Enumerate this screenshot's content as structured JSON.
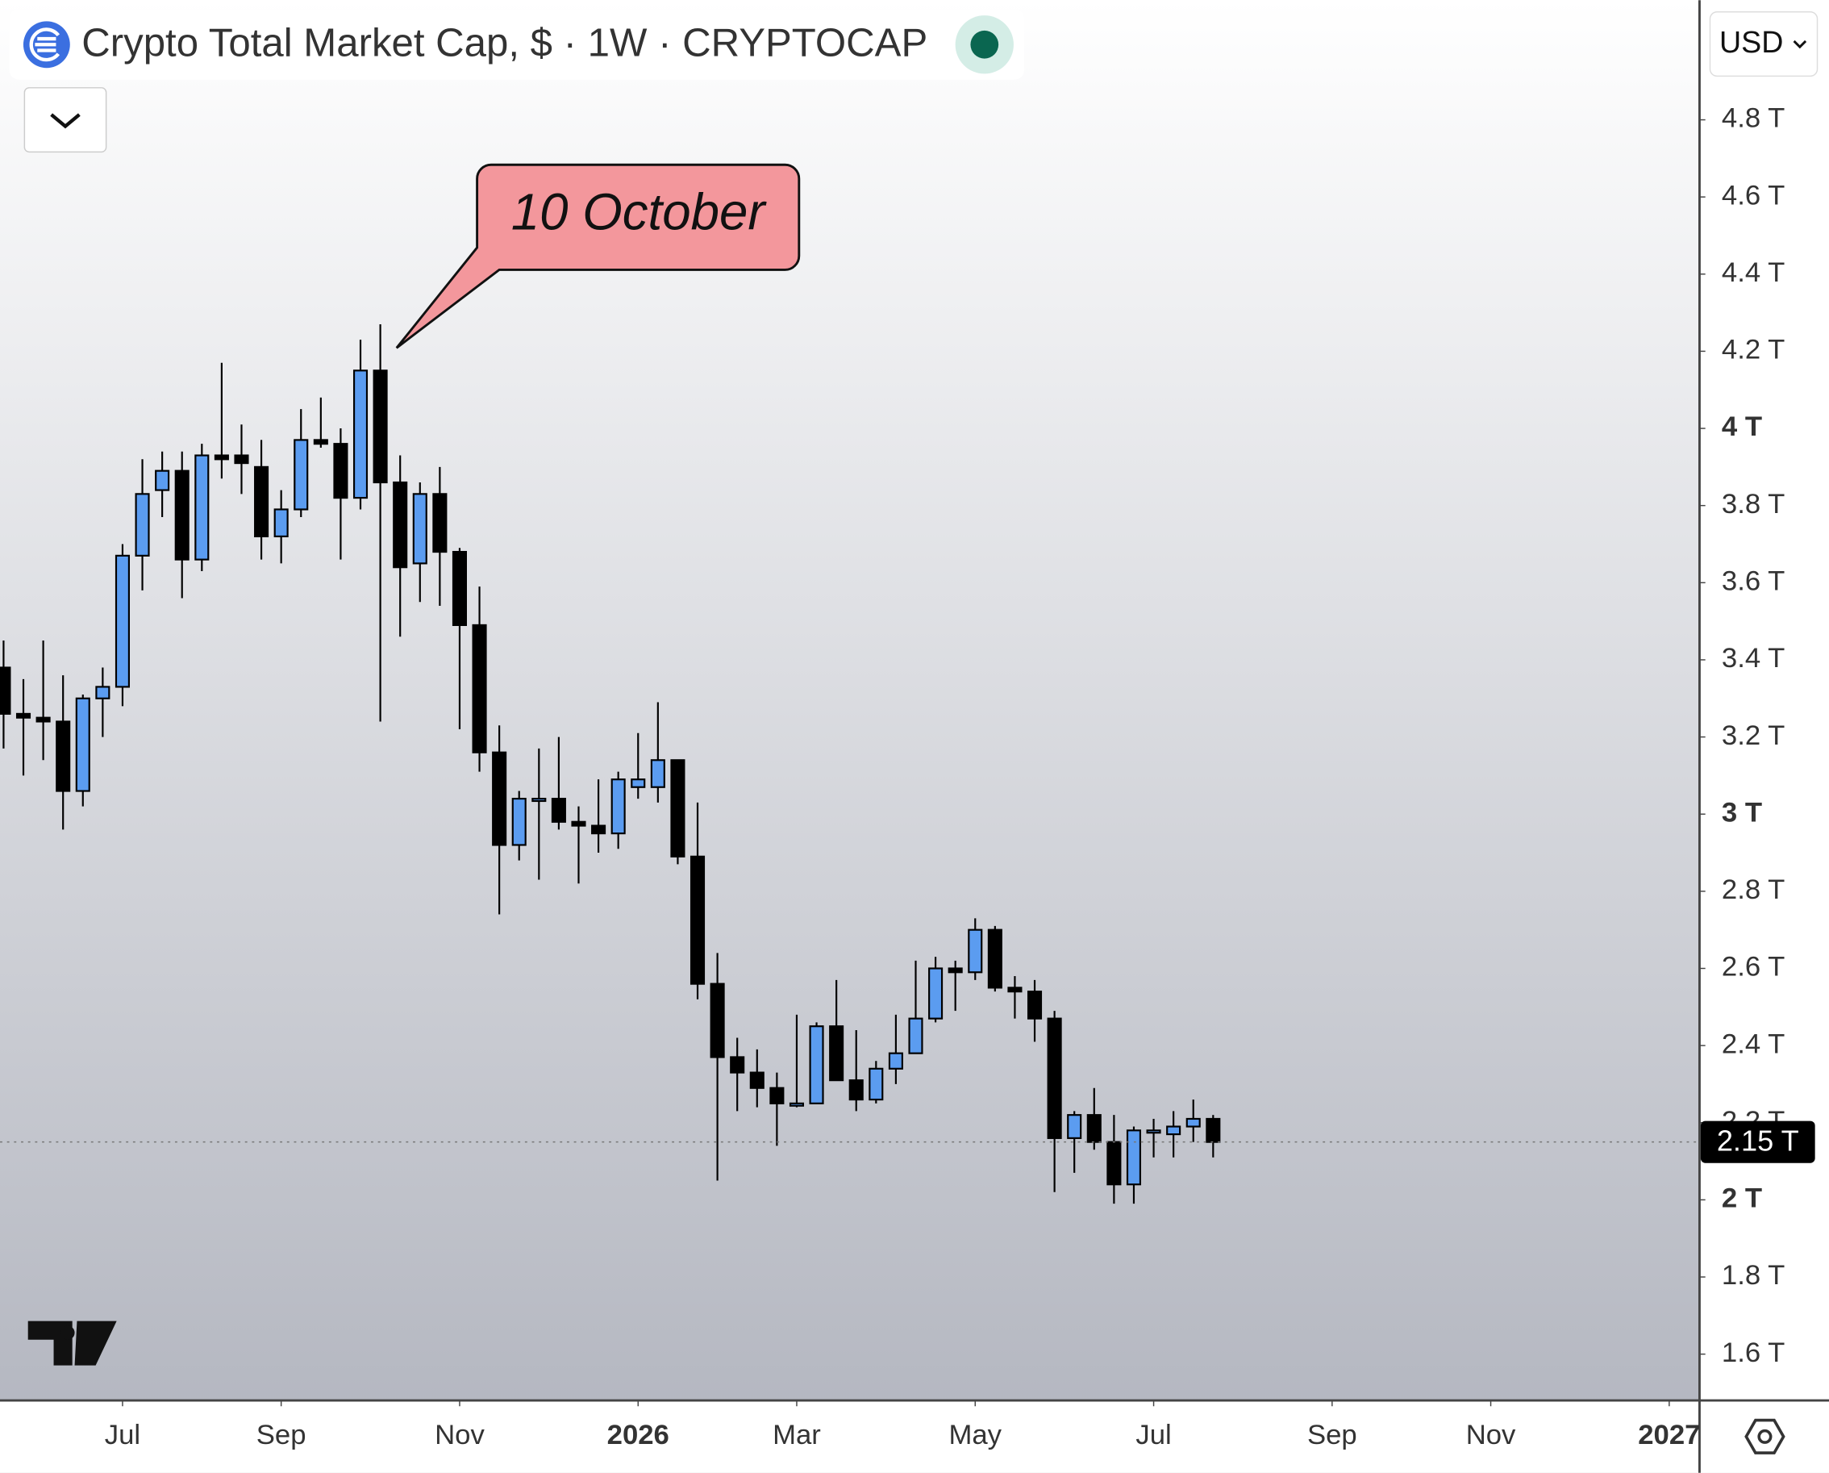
{
  "chart_data": {
    "type": "candlestick",
    "title": "Crypto Total Market Cap, $ · 1W · CRYPTOCAP",
    "currency": "USD",
    "annotation": "10 October",
    "up_color": "#5b9cf0",
    "down_color": "#000000",
    "x": [
      0,
      1,
      2,
      3,
      4,
      5,
      6,
      7,
      8,
      9,
      10,
      11,
      12,
      13,
      14,
      15,
      16,
      17,
      18,
      19,
      20,
      21,
      22,
      23,
      24,
      25,
      26,
      27,
      28,
      29,
      30,
      31,
      32,
      33,
      34,
      35,
      36,
      37,
      38,
      39,
      40,
      41,
      42,
      43,
      44,
      45,
      46,
      47,
      48,
      49,
      50,
      51,
      52,
      53,
      54,
      55,
      56,
      57,
      58,
      59,
      60,
      61
    ],
    "open": [
      3.38,
      3.26,
      3.25,
      3.24,
      3.06,
      3.3,
      3.33,
      3.67,
      3.84,
      3.89,
      3.66,
      3.93,
      3.93,
      3.9,
      3.72,
      3.79,
      3.97,
      3.96,
      3.82,
      4.15,
      3.86,
      3.65,
      3.83,
      3.68,
      3.49,
      3.16,
      2.92,
      3.04,
      3.04,
      2.98,
      2.97,
      2.95,
      3.07,
      3.07,
      3.14,
      2.89,
      2.56,
      2.37,
      2.33,
      2.29,
      2.25,
      2.25,
      2.45,
      2.31,
      2.26,
      2.34,
      2.38,
      2.47,
      2.6,
      2.59,
      2.7,
      2.55,
      2.54,
      2.47,
      2.16,
      2.22,
      2.15,
      2.04,
      2.18,
      2.17,
      2.19,
      2.21
    ],
    "high": [
      3.45,
      3.35,
      3.45,
      3.36,
      3.31,
      3.38,
      3.7,
      3.92,
      3.94,
      3.94,
      3.96,
      4.17,
      4.01,
      3.97,
      3.84,
      4.05,
      4.08,
      4.0,
      4.23,
      4.27,
      3.93,
      3.86,
      3.9,
      3.69,
      3.59,
      3.23,
      3.06,
      3.17,
      3.2,
      3.02,
      3.09,
      3.11,
      3.21,
      3.29,
      3.14,
      3.03,
      2.64,
      2.42,
      2.39,
      2.33,
      2.48,
      2.46,
      2.57,
      2.44,
      2.36,
      2.48,
      2.62,
      2.63,
      2.62,
      2.73,
      2.71,
      2.58,
      2.57,
      2.49,
      2.23,
      2.29,
      2.22,
      2.19,
      2.21,
      2.23,
      2.26,
      2.22
    ],
    "low": [
      3.17,
      3.1,
      3.14,
      2.96,
      3.02,
      3.2,
      3.28,
      3.58,
      3.77,
      3.56,
      3.63,
      3.87,
      3.83,
      3.66,
      3.65,
      3.77,
      3.95,
      3.66,
      3.79,
      3.24,
      3.46,
      3.55,
      3.54,
      3.22,
      3.11,
      2.74,
      2.88,
      2.83,
      2.96,
      2.82,
      2.9,
      2.91,
      3.04,
      3.03,
      2.87,
      2.52,
      2.05,
      2.23,
      2.24,
      2.14,
      2.24,
      2.25,
      2.31,
      2.23,
      2.25,
      2.3,
      2.38,
      2.46,
      2.49,
      2.57,
      2.54,
      2.47,
      2.41,
      2.02,
      2.07,
      2.13,
      1.99,
      1.99,
      2.11,
      2.11,
      2.15,
      2.11
    ],
    "close": [
      3.26,
      3.25,
      3.24,
      3.06,
      3.3,
      3.33,
      3.67,
      3.83,
      3.89,
      3.66,
      3.93,
      3.92,
      3.91,
      3.72,
      3.79,
      3.97,
      3.96,
      3.82,
      4.15,
      3.86,
      3.64,
      3.83,
      3.68,
      3.49,
      3.16,
      2.92,
      3.04,
      3.04,
      2.98,
      2.97,
      2.95,
      3.09,
      3.09,
      3.14,
      2.89,
      2.56,
      2.37,
      2.33,
      2.29,
      2.25,
      2.25,
      2.45,
      2.31,
      2.26,
      2.34,
      2.38,
      2.47,
      2.6,
      2.59,
      2.7,
      2.55,
      2.54,
      2.47,
      2.16,
      2.22,
      2.15,
      2.04,
      2.18,
      2.18,
      2.19,
      2.21,
      2.15
    ],
    "last_price": {
      "value": 2.15,
      "label": "2.15 T"
    },
    "xlim": [
      -0.18,
      85.47
    ],
    "xticks": [
      {
        "value": 6,
        "label": "Jul"
      },
      {
        "value": 14,
        "label": "Sep"
      },
      {
        "value": 23,
        "label": "Nov"
      },
      {
        "value": 32,
        "label": "2026"
      },
      {
        "value": 40,
        "label": "Mar"
      },
      {
        "value": 49,
        "label": "May"
      },
      {
        "value": 58,
        "label": "Jul"
      },
      {
        "value": 67,
        "label": "Sep"
      },
      {
        "value": 75,
        "label": "Nov"
      },
      {
        "value": 84,
        "label": "2027"
      }
    ],
    "ylim": [
      1.48,
      5.11
    ],
    "yticks": [
      {
        "value": 1.6,
        "label": "1.6 T"
      },
      {
        "value": 1.8,
        "label": "1.8 T"
      },
      {
        "value": 2,
        "label": "2 T"
      },
      {
        "value": 2.2,
        "label": "2.2 T"
      },
      {
        "value": 2.4,
        "label": "2.4 T"
      },
      {
        "value": 2.6,
        "label": "2.6 T"
      },
      {
        "value": 2.8,
        "label": "2.8 T"
      },
      {
        "value": 3,
        "label": "3 T"
      },
      {
        "value": 3.2,
        "label": "3.2 T"
      },
      {
        "value": 3.4,
        "label": "3.4 T"
      },
      {
        "value": 3.6,
        "label": "3.6 T"
      },
      {
        "value": 3.8,
        "label": "3.8 T"
      },
      {
        "value": 4,
        "label": "4 T"
      },
      {
        "value": 4.2,
        "label": "4.2 T"
      },
      {
        "value": 4.4,
        "label": "4.4 T"
      },
      {
        "value": 4.6,
        "label": "4.6 T"
      },
      {
        "value": 4.8,
        "label": "4.8 T"
      }
    ]
  }
}
